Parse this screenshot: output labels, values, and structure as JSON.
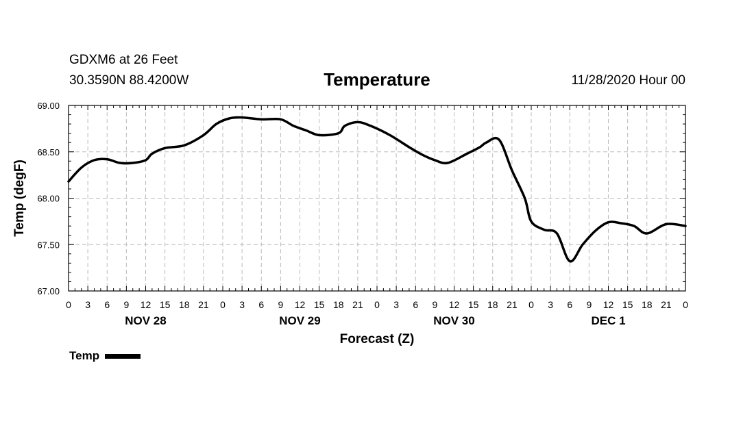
{
  "header": {
    "station": "GDXM6 at 26 Feet",
    "coords": "30.3590N 88.4200W",
    "title": "Temperature",
    "runtime": "11/28/2020 Hour 00"
  },
  "chart_data": {
    "type": "line",
    "title": "Temperature",
    "xlabel": "Forecast (Z)",
    "ylabel": "Temp (degF)",
    "ylim": [
      67.0,
      69.0
    ],
    "yticks": [
      "67.00",
      "67.50",
      "68.00",
      "68.50",
      "69.00"
    ],
    "xlim_hours": [
      0,
      96
    ],
    "xtick_labels": [
      "0",
      "3",
      "6",
      "9",
      "12",
      "15",
      "18",
      "21",
      "0",
      "3",
      "6",
      "9",
      "12",
      "15",
      "18",
      "21",
      "0",
      "3",
      "6",
      "9",
      "12",
      "15",
      "18",
      "21",
      "0",
      "3",
      "6",
      "9",
      "12",
      "15",
      "18",
      "21",
      "0"
    ],
    "day_labels": [
      {
        "label": "NOV 28",
        "hour": 12
      },
      {
        "label": "NOV 29",
        "hour": 36
      },
      {
        "label": "NOV 30",
        "hour": 60
      },
      {
        "label": "DEC 1",
        "hour": 84
      }
    ],
    "grid": true,
    "legend": "bottom-left",
    "series": [
      {
        "name": "Temp",
        "color": "#000000",
        "x": [
          0,
          2,
          4,
          6,
          8,
          10,
          12,
          13,
          15,
          18,
          21,
          23,
          25,
          27,
          30,
          33,
          35,
          37,
          39,
          42,
          43,
          45,
          47,
          50,
          53,
          55,
          57,
          59,
          62,
          64,
          65,
          67,
          69,
          71,
          72,
          74,
          76,
          78,
          80,
          82,
          84,
          86,
          88,
          90,
          93,
          96
        ],
        "y": [
          68.18,
          68.33,
          68.41,
          68.42,
          68.38,
          68.38,
          68.41,
          68.48,
          68.54,
          68.57,
          68.68,
          68.8,
          68.86,
          68.87,
          68.85,
          68.85,
          68.78,
          68.73,
          68.68,
          68.7,
          68.78,
          68.82,
          68.78,
          68.68,
          68.55,
          68.47,
          68.41,
          68.38,
          68.48,
          68.55,
          68.6,
          68.63,
          68.3,
          68.0,
          67.75,
          67.66,
          67.62,
          67.32,
          67.5,
          67.65,
          67.74,
          67.73,
          67.7,
          67.62,
          67.72,
          67.7
        ]
      }
    ]
  },
  "legend": {
    "label": "Temp"
  }
}
